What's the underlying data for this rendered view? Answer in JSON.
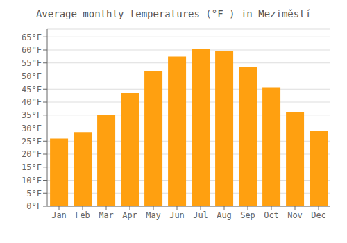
{
  "chart_data": {
    "type": "bar",
    "title": "Average monthly temperatures (°F ) in Meziměstí",
    "categories": [
      "Jan",
      "Feb",
      "Mar",
      "Apr",
      "May",
      "Jun",
      "Jul",
      "Aug",
      "Sep",
      "Oct",
      "Nov",
      "Dec"
    ],
    "values": [
      26,
      28.5,
      35,
      43.5,
      52,
      57.5,
      60.5,
      59.5,
      53.5,
      45.5,
      36,
      29
    ],
    "color": "#FFA010",
    "ylim": [
      0,
      68
    ],
    "yticks": [
      {
        "value": 0,
        "label": "0°F"
      },
      {
        "value": 5,
        "label": "5°F"
      },
      {
        "value": 10,
        "label": "10°F"
      },
      {
        "value": 15,
        "label": "15°F"
      },
      {
        "value": 20,
        "label": "20°F"
      },
      {
        "value": 25,
        "label": "25°F"
      },
      {
        "value": 30,
        "label": "30°F"
      },
      {
        "value": 35,
        "label": "35°F"
      },
      {
        "value": 40,
        "label": "40°F"
      },
      {
        "value": 45,
        "label": "45°F"
      },
      {
        "value": 50,
        "label": "50°F"
      },
      {
        "value": 55,
        "label": "55°F"
      },
      {
        "value": 60,
        "label": "60°F"
      },
      {
        "value": 65,
        "label": "65°F"
      }
    ],
    "grid": true
  }
}
